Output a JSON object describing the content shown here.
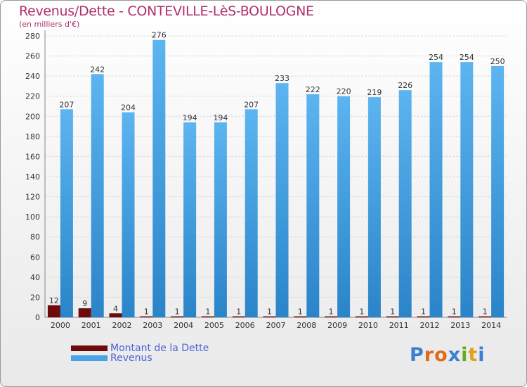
{
  "header": {
    "title": "Revenus/Dette - CONTEVILLE-LèS-BOULOGNE",
    "subtitle": "(en milliers d'€)"
  },
  "logo": {
    "text": "Proxiti",
    "letter_colors": [
      "#3a7fd0",
      "#e06a1a",
      "#e06a1a",
      "#3a7fd0",
      "#6aa82a",
      "#e0a21a",
      "#3a7fd0"
    ]
  },
  "colors": {
    "debt": "#6e0a0a",
    "revenue": "#4aa3e6",
    "revenue_light": "#5cb4f0",
    "revenue_dark": "#2a84c8",
    "grid": "#d9d9d9",
    "axis_text": "#333333"
  },
  "chart_data": {
    "type": "bar",
    "title": "Revenus/Dette - CONTEVILLE-LèS-BOULOGNE",
    "subtitle": "(en milliers d'€)",
    "categories": [
      "2000",
      "2001",
      "2002",
      "2003",
      "2004",
      "2005",
      "2006",
      "2007",
      "2008",
      "2009",
      "2010",
      "2011",
      "2012",
      "2013",
      "2014"
    ],
    "series": [
      {
        "name": "Montant de la Dette",
        "values": [
          12,
          9,
          4,
          1,
          1,
          1,
          1,
          1,
          1,
          1,
          1,
          1,
          1,
          1,
          1
        ]
      },
      {
        "name": "Revenus",
        "values": [
          207,
          242,
          204,
          276,
          194,
          194,
          207,
          233,
          222,
          220,
          219,
          226,
          254,
          254,
          250
        ]
      }
    ],
    "ylim": [
      0,
      280
    ],
    "yticks": [
      0,
      20,
      40,
      60,
      80,
      100,
      120,
      140,
      160,
      180,
      200,
      220,
      240,
      260,
      280
    ],
    "grid": true,
    "legend_position": "bottom-left"
  }
}
